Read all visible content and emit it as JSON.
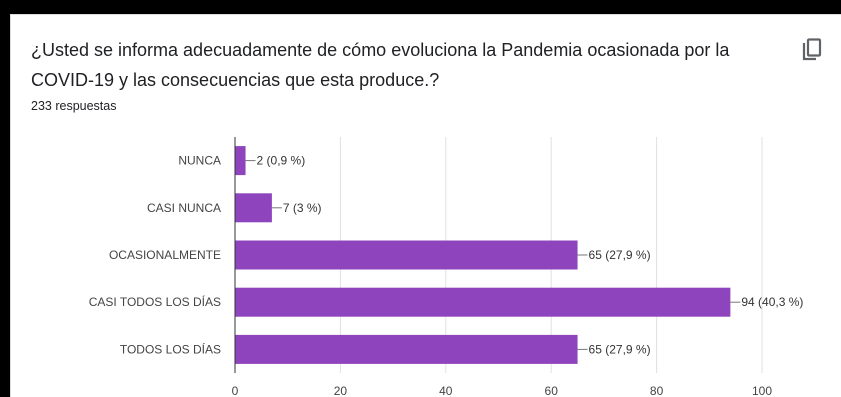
{
  "question": "¿Usted se informa adecuadamente de cómo evoluciona la Pandemia ocasionada por la COVID-19 y las consecuencias que esta produce.?",
  "responses_count": "233 respuestas",
  "copy_icon": "copy-icon",
  "colors": {
    "bar": "#8e44bd",
    "grid": "#e0e0e0",
    "axis": "#333333",
    "text": "#202124"
  },
  "chart_data": {
    "type": "bar",
    "orientation": "horizontal",
    "categories": [
      "NUNCA",
      "CASI NUNCA",
      "OCASIONALMENTE",
      "CASI TODOS LOS DÍAS",
      "TODOS LOS DÍAS"
    ],
    "values": [
      2,
      7,
      65,
      94,
      65
    ],
    "data_labels": [
      "2 (0,9 %)",
      "7 (3 %)",
      "65 (27,9 %)",
      "94 (40,3 %)",
      "65 (27,9 %)"
    ],
    "xlim": [
      0,
      100
    ],
    "xticks": [
      0,
      20,
      40,
      60,
      80,
      100
    ],
    "grid": true,
    "legend": "none"
  }
}
